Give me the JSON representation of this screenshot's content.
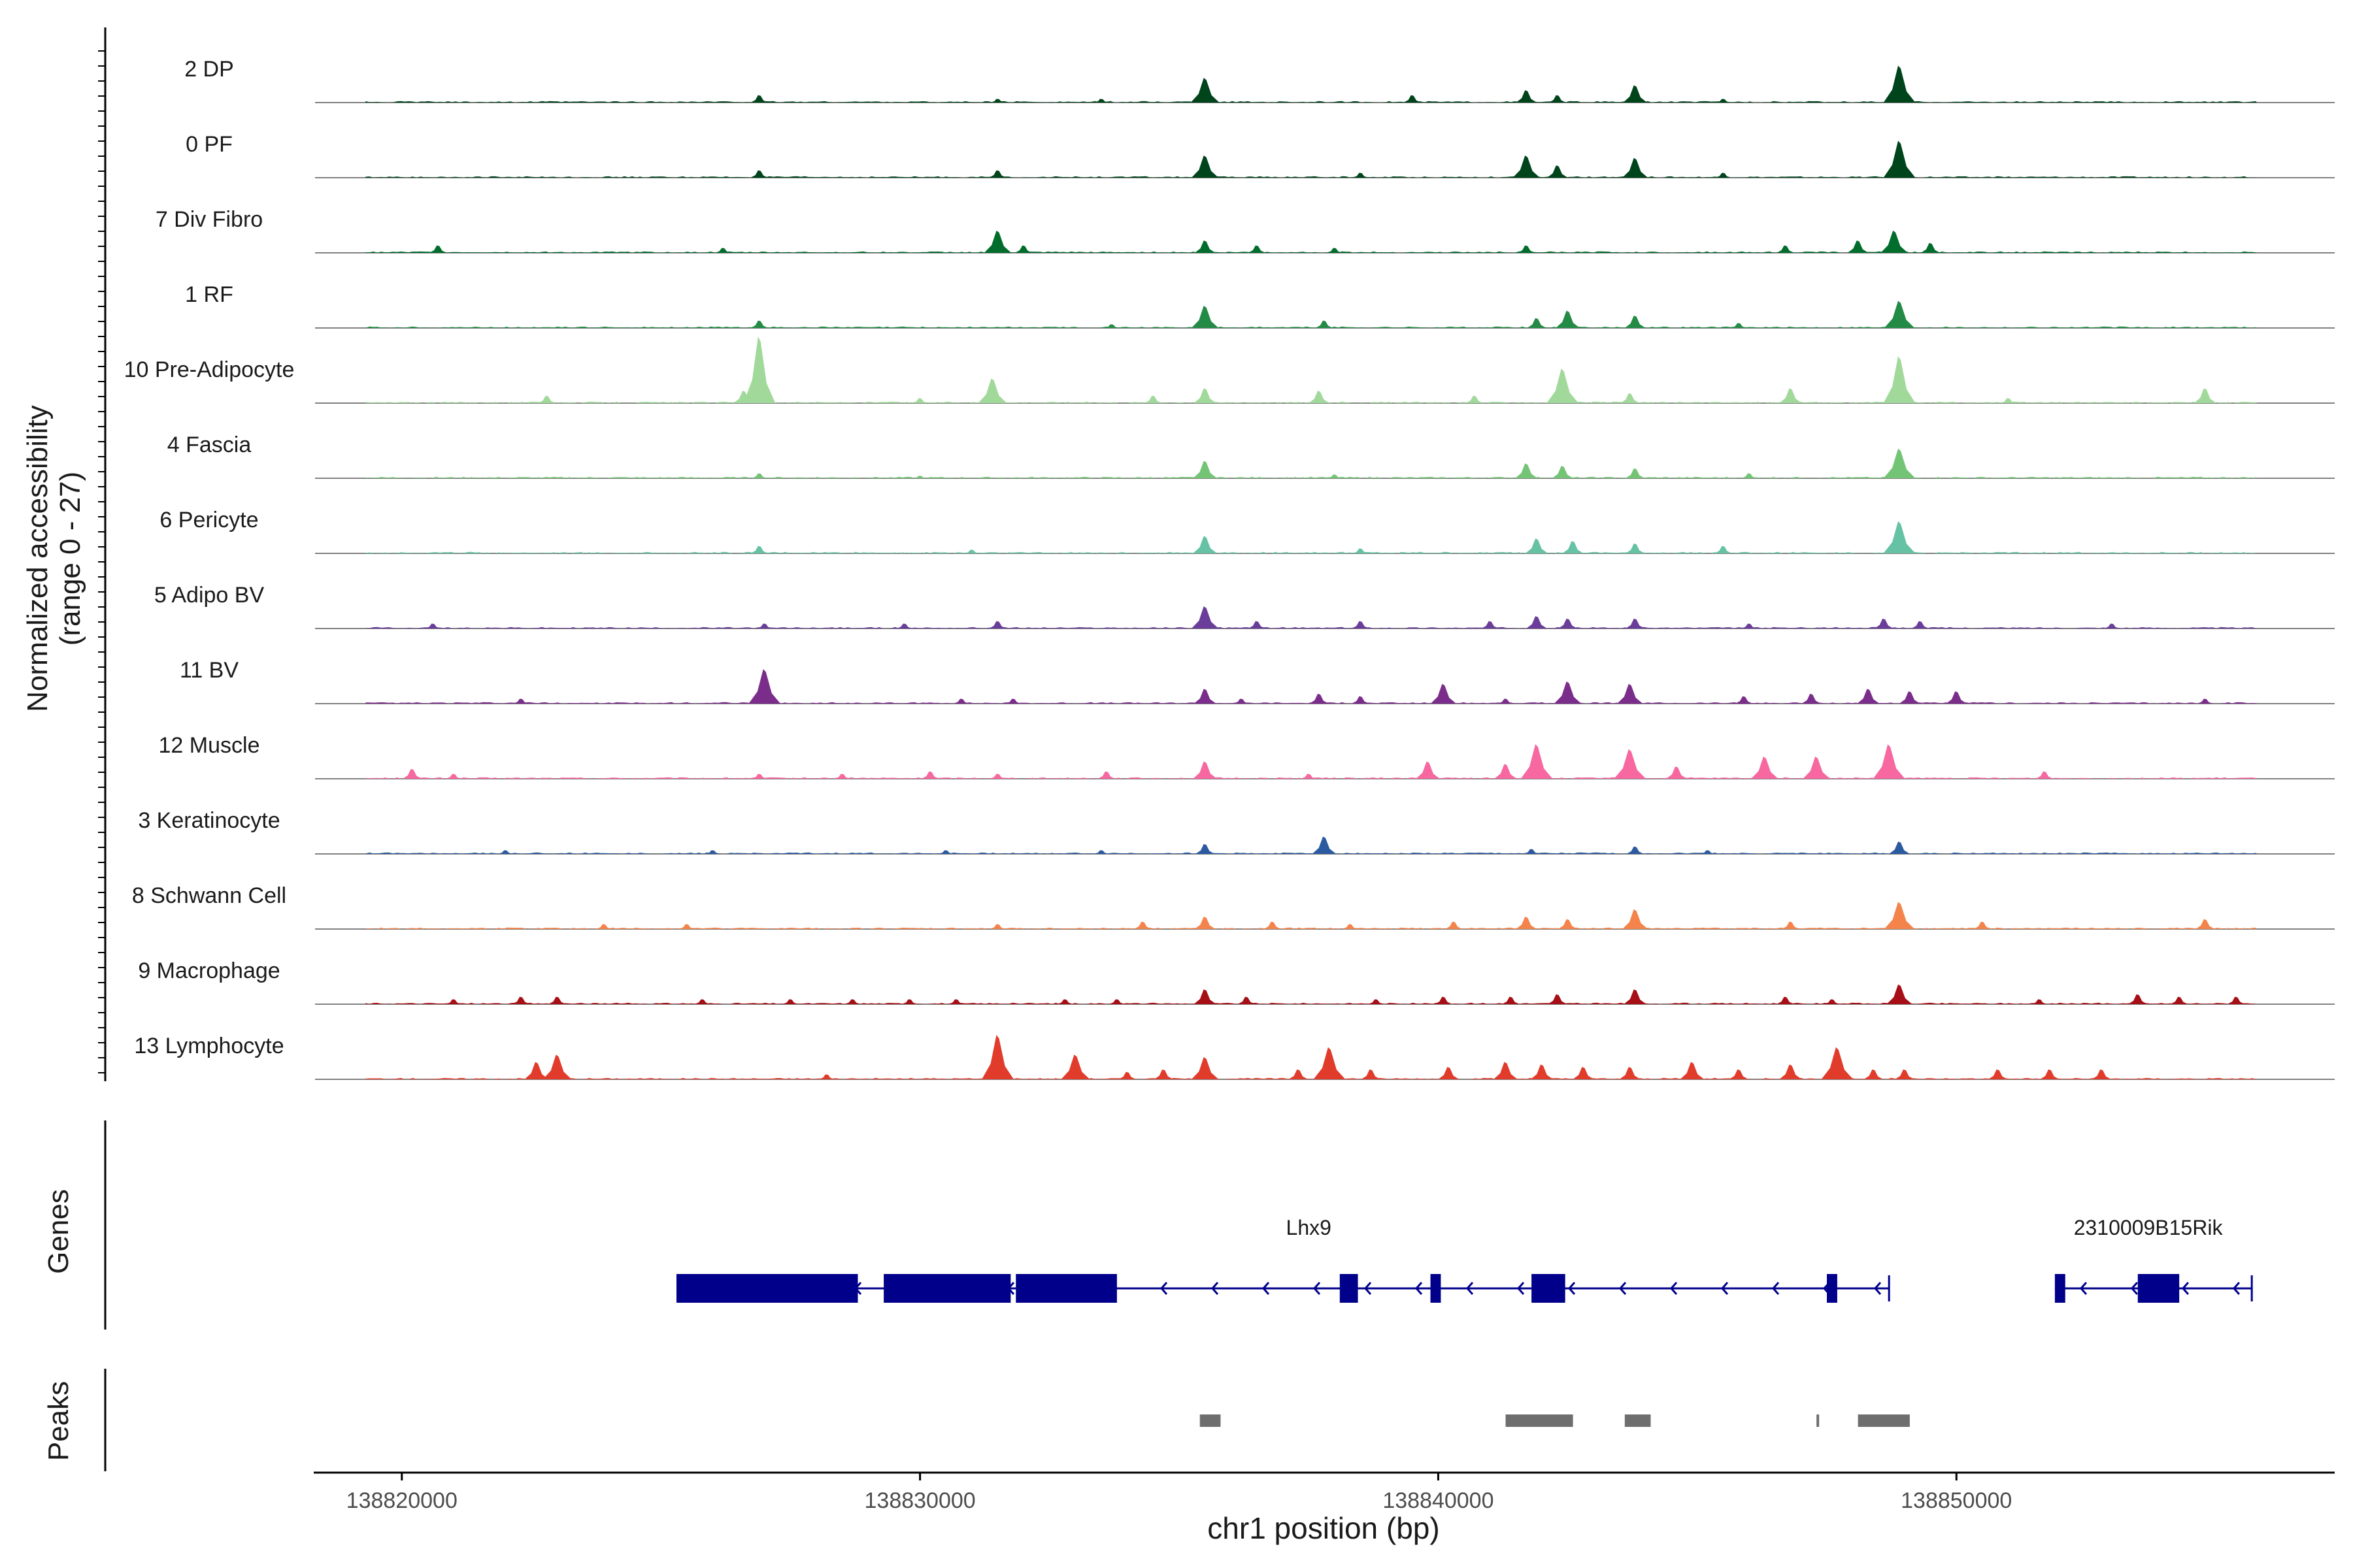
{
  "chart_data": {
    "type": "area",
    "y_axis_title": [
      "Normalized accessibility",
      "(range 0 - 27)"
    ],
    "y_range": [
      0,
      27
    ],
    "x_axis_title": "chr1 position (bp)",
    "x_range": [
      138818300,
      138857300
    ],
    "x_ticks": [
      {
        "value": 138820000,
        "label": "138820000"
      },
      {
        "value": 138830000,
        "label": "138830000"
      },
      {
        "value": 138840000,
        "label": "138840000"
      },
      {
        "value": 138850000,
        "label": "138850000"
      }
    ],
    "panel_titles": {
      "genes": "Genes",
      "peaks": "Peaks"
    },
    "tracks": [
      {
        "name": "2 DP",
        "color": "#00441b",
        "peaks": [
          [
            138826900,
            3
          ],
          [
            138835500,
            10
          ],
          [
            138839500,
            3
          ],
          [
            138841700,
            5
          ],
          [
            138842300,
            3
          ],
          [
            138843800,
            7
          ],
          [
            138848900,
            15
          ],
          [
            138833500,
            1.5
          ],
          [
            138831500,
            1.5
          ],
          [
            138845500,
            1.5
          ]
        ]
      },
      {
        "name": "0 PF",
        "color": "#00441b",
        "peaks": [
          [
            138826900,
            3
          ],
          [
            138831500,
            3
          ],
          [
            138835500,
            9
          ],
          [
            138841700,
            9
          ],
          [
            138842300,
            5
          ],
          [
            138843800,
            8
          ],
          [
            138848900,
            15
          ],
          [
            138845500,
            2
          ],
          [
            138838500,
            2
          ]
        ]
      },
      {
        "name": "7 Div Fibro",
        "color": "#006d2c",
        "peaks": [
          [
            138820700,
            3
          ],
          [
            138826200,
            2
          ],
          [
            138831500,
            9
          ],
          [
            138832000,
            3
          ],
          [
            138835500,
            5
          ],
          [
            138836500,
            3
          ],
          [
            138838000,
            2
          ],
          [
            138841700,
            3
          ],
          [
            138846700,
            3
          ],
          [
            138848100,
            5
          ],
          [
            138848800,
            9
          ],
          [
            138849500,
            4
          ]
        ]
      },
      {
        "name": "1 RF",
        "color": "#238b45",
        "peaks": [
          [
            138826900,
            3
          ],
          [
            138835500,
            9
          ],
          [
            138837800,
            3
          ],
          [
            138841900,
            4
          ],
          [
            138842500,
            7
          ],
          [
            138843800,
            5
          ],
          [
            138848900,
            11
          ],
          [
            138833700,
            1.5
          ],
          [
            138845800,
            2
          ]
        ]
      },
      {
        "name": "10 Pre-Adipocyte",
        "color": "#a1d99b",
        "peaks": [
          [
            138822800,
            3
          ],
          [
            138826600,
            5
          ],
          [
            138826900,
            27
          ],
          [
            138830000,
            2
          ],
          [
            138831400,
            10
          ],
          [
            138834500,
            3
          ],
          [
            138835500,
            6
          ],
          [
            138837700,
            5
          ],
          [
            138840700,
            3
          ],
          [
            138842400,
            14
          ],
          [
            138843700,
            4
          ],
          [
            138846800,
            6
          ],
          [
            138848900,
            19
          ],
          [
            138851000,
            2
          ],
          [
            138854800,
            6
          ]
        ]
      },
      {
        "name": "4 Fascia",
        "color": "#74c476",
        "peaks": [
          [
            138826900,
            2
          ],
          [
            138835500,
            7
          ],
          [
            138841700,
            6
          ],
          [
            138842400,
            5
          ],
          [
            138843800,
            4
          ],
          [
            138848900,
            12
          ],
          [
            138830000,
            1
          ],
          [
            138838000,
            1.5
          ],
          [
            138846000,
            2
          ]
        ]
      },
      {
        "name": "6 Pericyte",
        "color": "#66c2a4",
        "peaks": [
          [
            138826900,
            3
          ],
          [
            138835500,
            7
          ],
          [
            138841900,
            6
          ],
          [
            138842600,
            5
          ],
          [
            138843800,
            4
          ],
          [
            138848900,
            13
          ],
          [
            138845500,
            3
          ],
          [
            138831000,
            1.5
          ],
          [
            138838500,
            2
          ]
        ]
      },
      {
        "name": "5 Adipo BV",
        "color": "#6a3d9a",
        "peaks": [
          [
            138820600,
            2
          ],
          [
            138827000,
            2
          ],
          [
            138829700,
            2
          ],
          [
            138831500,
            3
          ],
          [
            138835500,
            9
          ],
          [
            138836500,
            3
          ],
          [
            138838500,
            3
          ],
          [
            138841000,
            3
          ],
          [
            138841900,
            5
          ],
          [
            138842500,
            4
          ],
          [
            138843800,
            4
          ],
          [
            138846000,
            2
          ],
          [
            138848600,
            4
          ],
          [
            138849300,
            3
          ],
          [
            138853000,
            2
          ]
        ]
      },
      {
        "name": "11 BV",
        "color": "#7b2d8b",
        "peaks": [
          [
            138822300,
            2
          ],
          [
            138827000,
            14
          ],
          [
            138830800,
            2
          ],
          [
            138831800,
            2
          ],
          [
            138835500,
            6
          ],
          [
            138836200,
            2
          ],
          [
            138837700,
            4
          ],
          [
            138838500,
            3
          ],
          [
            138840100,
            8
          ],
          [
            138841300,
            2
          ],
          [
            138842500,
            9
          ],
          [
            138843700,
            8
          ],
          [
            138845900,
            3
          ],
          [
            138847200,
            4
          ],
          [
            138848300,
            6
          ],
          [
            138849100,
            5
          ],
          [
            138850000,
            5
          ],
          [
            138854800,
            2
          ]
        ]
      },
      {
        "name": "12 Muscle",
        "color": "#f768a1",
        "peaks": [
          [
            138820200,
            4
          ],
          [
            138821000,
            2
          ],
          [
            138826900,
            2
          ],
          [
            138828500,
            2
          ],
          [
            138830200,
            3
          ],
          [
            138831500,
            2
          ],
          [
            138833600,
            3
          ],
          [
            138835500,
            7
          ],
          [
            138837500,
            2
          ],
          [
            138839800,
            7
          ],
          [
            138841300,
            6
          ],
          [
            138841900,
            14
          ],
          [
            138843700,
            12
          ],
          [
            138844600,
            5
          ],
          [
            138846300,
            9
          ],
          [
            138847300,
            9
          ],
          [
            138848700,
            14
          ],
          [
            138851700,
            3
          ]
        ]
      },
      {
        "name": "3 Keratinocyte",
        "color": "#2b5aa0",
        "peaks": [
          [
            138822000,
            1.5
          ],
          [
            138826000,
            1.5
          ],
          [
            138830500,
            1.5
          ],
          [
            138833500,
            1.5
          ],
          [
            138835500,
            4
          ],
          [
            138837800,
            7
          ],
          [
            138841800,
            2
          ],
          [
            138843800,
            3
          ],
          [
            138848900,
            5
          ],
          [
            138845200,
            1.5
          ]
        ]
      },
      {
        "name": "8 Schwann Cell",
        "color": "#f4844c",
        "peaks": [
          [
            138823900,
            2
          ],
          [
            138825500,
            2
          ],
          [
            138831500,
            2
          ],
          [
            138834300,
            3
          ],
          [
            138835500,
            5
          ],
          [
            138836800,
            3
          ],
          [
            138838300,
            2
          ],
          [
            138840300,
            3
          ],
          [
            138841700,
            5
          ],
          [
            138842500,
            4
          ],
          [
            138843800,
            8
          ],
          [
            138846800,
            3
          ],
          [
            138848900,
            11
          ],
          [
            138850500,
            3
          ],
          [
            138854800,
            4
          ]
        ]
      },
      {
        "name": "9 Macrophage",
        "color": "#a50f15",
        "peaks": [
          [
            138821000,
            2
          ],
          [
            138822300,
            3
          ],
          [
            138823000,
            3
          ],
          [
            138825800,
            2
          ],
          [
            138827500,
            2
          ],
          [
            138828700,
            2
          ],
          [
            138829800,
            2
          ],
          [
            138830700,
            2
          ],
          [
            138832800,
            2
          ],
          [
            138833800,
            2
          ],
          [
            138835500,
            6
          ],
          [
            138836300,
            3
          ],
          [
            138838800,
            2
          ],
          [
            138840100,
            3
          ],
          [
            138841400,
            3
          ],
          [
            138842300,
            4
          ],
          [
            138843800,
            6
          ],
          [
            138846700,
            3
          ],
          [
            138847600,
            2
          ],
          [
            138848900,
            8
          ],
          [
            138851600,
            2
          ],
          [
            138853500,
            4
          ],
          [
            138854300,
            3
          ],
          [
            138855400,
            3
          ]
        ]
      },
      {
        "name": "13 Lymphocyte",
        "color": "#e13b2b",
        "peaks": [
          [
            138822600,
            7
          ],
          [
            138823000,
            10
          ],
          [
            138828200,
            2
          ],
          [
            138831500,
            18
          ],
          [
            138833000,
            10
          ],
          [
            138834000,
            3
          ],
          [
            138834700,
            4
          ],
          [
            138835500,
            9
          ],
          [
            138837300,
            4
          ],
          [
            138837900,
            13
          ],
          [
            138838700,
            4
          ],
          [
            138840200,
            5
          ],
          [
            138841300,
            7
          ],
          [
            138842000,
            6
          ],
          [
            138842800,
            5
          ],
          [
            138843700,
            5
          ],
          [
            138844900,
            7
          ],
          [
            138845800,
            4
          ],
          [
            138846800,
            6
          ],
          [
            138847700,
            13
          ],
          [
            138848400,
            4
          ],
          [
            138849000,
            4
          ],
          [
            138850800,
            4
          ],
          [
            138851800,
            4
          ],
          [
            138852800,
            4
          ]
        ]
      }
    ],
    "genes": [
      {
        "name": "Lhx9",
        "strand": "-",
        "start": 138825300,
        "end": 138848700,
        "exons": [
          [
            138825300,
            138828800
          ],
          [
            138829300,
            138831750
          ],
          [
            138831850,
            138833800
          ],
          [
            138838100,
            138838450
          ],
          [
            138839850,
            138840050
          ],
          [
            138841800,
            138842450
          ],
          [
            138847500,
            138847700
          ]
        ]
      },
      {
        "name": "2310009B15Rik",
        "strand": "-",
        "start": 138851900,
        "end": 138855700,
        "exons": [
          [
            138851900,
            138852100
          ],
          [
            138853500,
            138854300
          ]
        ]
      }
    ],
    "peaks_regions": [
      [
        138835400,
        138835800
      ],
      [
        138841300,
        138842600
      ],
      [
        138843600,
        138844100
      ],
      [
        138847300,
        138847350
      ],
      [
        138848100,
        138849100
      ]
    ]
  }
}
